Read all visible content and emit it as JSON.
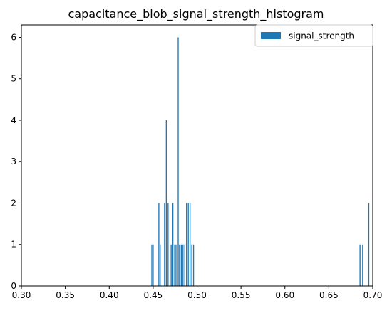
{
  "colors": {
    "bar": "#1f77b4",
    "axis": "#000000",
    "background": "#ffffff",
    "legend_border": "#cccccc"
  },
  "chart_data": {
    "type": "bar",
    "title": "capacitance_blob_signal_strength_histogram",
    "xlabel": "",
    "ylabel": "",
    "xlim": [
      0.3,
      0.7
    ],
    "ylim": [
      0,
      6.3
    ],
    "grid": false,
    "legend_position": "top-right",
    "x_ticks": [
      0.3,
      0.35,
      0.4,
      0.45,
      0.5,
      0.55,
      0.6,
      0.65,
      0.7
    ],
    "x_tick_labels": [
      "0.30",
      "0.35",
      "0.40",
      "0.45",
      "0.50",
      "0.55",
      "0.60",
      "0.65",
      "0.70"
    ],
    "y_ticks": [
      0,
      1,
      2,
      3,
      4,
      5,
      6
    ],
    "y_tick_labels": [
      "0",
      "1",
      "2",
      "3",
      "4",
      "5",
      "6"
    ],
    "bar_width": 0.0011,
    "series": [
      {
        "name": "signal_strength",
        "bins": [
          {
            "x": 0.4485,
            "count": 1
          },
          {
            "x": 0.45,
            "count": 1
          },
          {
            "x": 0.4565,
            "count": 2
          },
          {
            "x": 0.458,
            "count": 1
          },
          {
            "x": 0.463,
            "count": 2
          },
          {
            "x": 0.465,
            "count": 4
          },
          {
            "x": 0.467,
            "count": 2
          },
          {
            "x": 0.4705,
            "count": 1
          },
          {
            "x": 0.4725,
            "count": 2
          },
          {
            "x": 0.4745,
            "count": 1
          },
          {
            "x": 0.476,
            "count": 1
          },
          {
            "x": 0.4785,
            "count": 6
          },
          {
            "x": 0.48,
            "count": 1
          },
          {
            "x": 0.482,
            "count": 1
          },
          {
            "x": 0.484,
            "count": 1
          },
          {
            "x": 0.486,
            "count": 1
          },
          {
            "x": 0.488,
            "count": 2
          },
          {
            "x": 0.49,
            "count": 2
          },
          {
            "x": 0.492,
            "count": 2
          },
          {
            "x": 0.494,
            "count": 1
          },
          {
            "x": 0.496,
            "count": 1
          },
          {
            "x": 0.6855,
            "count": 1
          },
          {
            "x": 0.6885,
            "count": 1
          },
          {
            "x": 0.6955,
            "count": 2
          }
        ]
      }
    ]
  }
}
